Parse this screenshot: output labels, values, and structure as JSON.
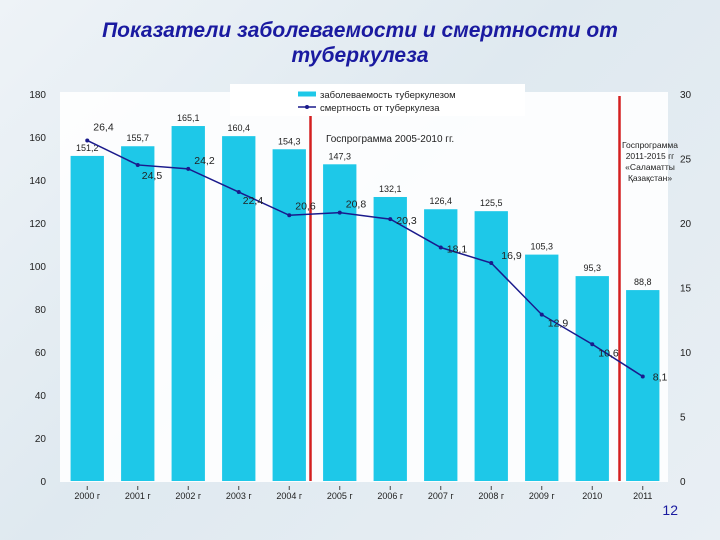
{
  "slide": {
    "title": "Показатели заболеваемости и смертности от туберкулеза",
    "page_number": "12"
  },
  "colors": {
    "bar": "#1ec8e8",
    "line": "#1a1a8c",
    "program_marker": "#d42020",
    "title": "#1a1aa0"
  },
  "chart_data": {
    "type": "bar",
    "title": "",
    "xlabel": "",
    "ylabel": "",
    "categories": [
      "2000 г",
      "2001 г",
      "2002 г",
      "2003 г",
      "2004 г",
      "2005 г",
      "2006 г",
      "2007 г",
      "2008 г",
      "2009 г",
      "2010",
      "2011"
    ],
    "ylim": [
      0,
      180
    ],
    "y_ticks": [
      0,
      20,
      40,
      60,
      80,
      100,
      120,
      140,
      160,
      180
    ],
    "y2lim": [
      0,
      30
    ],
    "y2_ticks": [
      0,
      5,
      10,
      15,
      20,
      25,
      30
    ],
    "legend_position": "top-center",
    "grid": false,
    "series": [
      {
        "name": "заболеваемость туберкулезом",
        "type": "bar",
        "axis": "left",
        "values": [
          151.2,
          155.7,
          165.1,
          160.4,
          154.3,
          147.3,
          132.1,
          126.4,
          125.5,
          105.3,
          95.3,
          88.8
        ],
        "labels": [
          "151,2",
          "155,7",
          "165,1",
          "160,4",
          "154,3",
          "147,3",
          "132,1",
          "126,4",
          "125,5",
          "105,3",
          "95,3",
          "88,8"
        ]
      },
      {
        "name": "смертность от туберкулеза",
        "type": "line",
        "axis": "right",
        "values": [
          26.4,
          24.5,
          24.2,
          22.4,
          20.6,
          20.8,
          20.3,
          18.1,
          16.9,
          12.9,
          10.6,
          8.1
        ],
        "labels": [
          "26,4",
          "24,5",
          "24,2",
          "22,4",
          "20,6",
          "20,8",
          "20,3",
          "18,1",
          "16,9",
          "12,9",
          "10,6",
          "8,1"
        ]
      }
    ],
    "annotations": [
      {
        "text": "Госпрограмма 2005-2010 гг.",
        "after_category": "2004 г"
      },
      {
        "text": "Госпрограмма 2011-2015 гг «Саламатты Қазақстан»",
        "after_category": "2010"
      }
    ]
  }
}
